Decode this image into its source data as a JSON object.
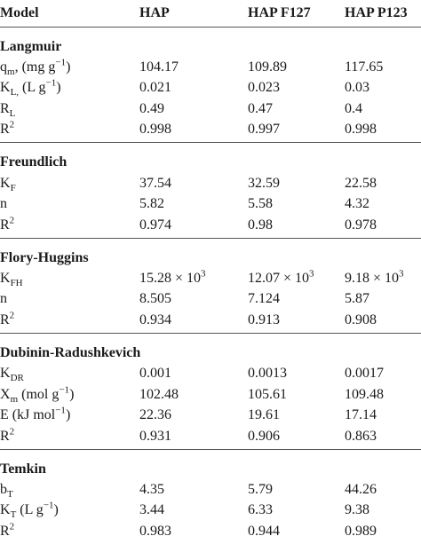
{
  "header": [
    "Model",
    "HAP",
    "HAP F127",
    "HAP P123"
  ],
  "sections": [
    {
      "title": "Langmuir",
      "rows": [
        {
          "label": [
            {
              "t": "q"
            },
            {
              "sub": "m"
            },
            {
              "t": ", (mg g"
            },
            {
              "sup": "−1"
            },
            {
              "t": ")"
            }
          ],
          "values": [
            [
              {
                "t": "104.17"
              }
            ],
            [
              {
                "t": "109.89"
              }
            ],
            [
              {
                "t": "117.65"
              }
            ]
          ]
        },
        {
          "label": [
            {
              "t": "K"
            },
            {
              "sub": "L,"
            },
            {
              "t": " (L g"
            },
            {
              "sup": "−1"
            },
            {
              "t": ")"
            }
          ],
          "values": [
            [
              {
                "t": "0.021"
              }
            ],
            [
              {
                "t": "0.023"
              }
            ],
            [
              {
                "t": "0.03"
              }
            ]
          ]
        },
        {
          "label": [
            {
              "t": "R"
            },
            {
              "sub": "L"
            }
          ],
          "values": [
            [
              {
                "t": "0.49"
              }
            ],
            [
              {
                "t": "0.47"
              }
            ],
            [
              {
                "t": "0.4"
              }
            ]
          ]
        },
        {
          "label": [
            {
              "t": "R"
            },
            {
              "sup": "2"
            }
          ],
          "values": [
            [
              {
                "t": "0.998"
              }
            ],
            [
              {
                "t": "0.997"
              }
            ],
            [
              {
                "t": "0.998"
              }
            ]
          ]
        }
      ]
    },
    {
      "title": "Freundlich",
      "rows": [
        {
          "label": [
            {
              "t": "K"
            },
            {
              "sub": "F"
            }
          ],
          "values": [
            [
              {
                "t": "37.54"
              }
            ],
            [
              {
                "t": "32.59"
              }
            ],
            [
              {
                "t": "22.58"
              }
            ]
          ]
        },
        {
          "label": [
            {
              "t": "n"
            }
          ],
          "values": [
            [
              {
                "t": "5.82"
              }
            ],
            [
              {
                "t": "5.58"
              }
            ],
            [
              {
                "t": "4.32"
              }
            ]
          ]
        },
        {
          "label": [
            {
              "t": "R"
            },
            {
              "sup": "2"
            }
          ],
          "values": [
            [
              {
                "t": "0.974"
              }
            ],
            [
              {
                "t": "0.98"
              }
            ],
            [
              {
                "t": "0.978"
              }
            ]
          ]
        }
      ]
    },
    {
      "title": "Flory-Huggins",
      "rows": [
        {
          "label": [
            {
              "t": "K"
            },
            {
              "sub": "FH"
            }
          ],
          "values": [
            [
              {
                "t": "15.28 × 10"
              },
              {
                "sup": "3"
              }
            ],
            [
              {
                "t": "12.07 × 10"
              },
              {
                "sup": "3"
              }
            ],
            [
              {
                "t": "9.18 × 10"
              },
              {
                "sup": "3"
              }
            ]
          ]
        },
        {
          "label": [
            {
              "t": "n"
            }
          ],
          "values": [
            [
              {
                "t": "8.505"
              }
            ],
            [
              {
                "t": "7.124"
              }
            ],
            [
              {
                "t": "5.87"
              }
            ]
          ]
        },
        {
          "label": [
            {
              "t": "R"
            },
            {
              "sup": "2"
            }
          ],
          "values": [
            [
              {
                "t": "0.934"
              }
            ],
            [
              {
                "t": "0.913"
              }
            ],
            [
              {
                "t": "0.908"
              }
            ]
          ]
        }
      ]
    },
    {
      "title": "Dubinin-Radushkevich",
      "rows": [
        {
          "label": [
            {
              "t": "K"
            },
            {
              "sub": "DR"
            }
          ],
          "values": [
            [
              {
                "t": "0.001"
              }
            ],
            [
              {
                "t": "0.0013"
              }
            ],
            [
              {
                "t": "0.0017"
              }
            ]
          ]
        },
        {
          "label": [
            {
              "t": "X"
            },
            {
              "sub": "m"
            },
            {
              "t": " (mol g"
            },
            {
              "sup": "−1"
            },
            {
              "t": ")"
            }
          ],
          "values": [
            [
              {
                "t": "102.48"
              }
            ],
            [
              {
                "t": "105.61"
              }
            ],
            [
              {
                "t": "109.48"
              }
            ]
          ]
        },
        {
          "label": [
            {
              "t": "E (kJ mol"
            },
            {
              "sup": "−1"
            },
            {
              "t": ")"
            }
          ],
          "values": [
            [
              {
                "t": "22.36"
              }
            ],
            [
              {
                "t": "19.61"
              }
            ],
            [
              {
                "t": "17.14"
              }
            ]
          ]
        },
        {
          "label": [
            {
              "t": "R"
            },
            {
              "sup": "2"
            }
          ],
          "values": [
            [
              {
                "t": "0.931"
              }
            ],
            [
              {
                "t": "0.906"
              }
            ],
            [
              {
                "t": "0.863"
              }
            ]
          ]
        }
      ]
    },
    {
      "title": "Temkin",
      "rows": [
        {
          "label": [
            {
              "t": "b"
            },
            {
              "sub": "T"
            }
          ],
          "values": [
            [
              {
                "t": "4.35"
              }
            ],
            [
              {
                "t": "5.79"
              }
            ],
            [
              {
                "t": "44.26"
              }
            ]
          ]
        },
        {
          "label": [
            {
              "t": "K"
            },
            {
              "sub": "T"
            },
            {
              "t": " (L g"
            },
            {
              "sup": "−1"
            },
            {
              "t": ")"
            }
          ],
          "values": [
            [
              {
                "t": "3.44"
              }
            ],
            [
              {
                "t": "6.33"
              }
            ],
            [
              {
                "t": "9.38"
              }
            ]
          ]
        },
        {
          "label": [
            {
              "t": "R"
            },
            {
              "sup": "2"
            }
          ],
          "values": [
            [
              {
                "t": "0.983"
              }
            ],
            [
              {
                "t": "0.944"
              }
            ],
            [
              {
                "t": "0.989"
              }
            ]
          ]
        }
      ]
    }
  ]
}
